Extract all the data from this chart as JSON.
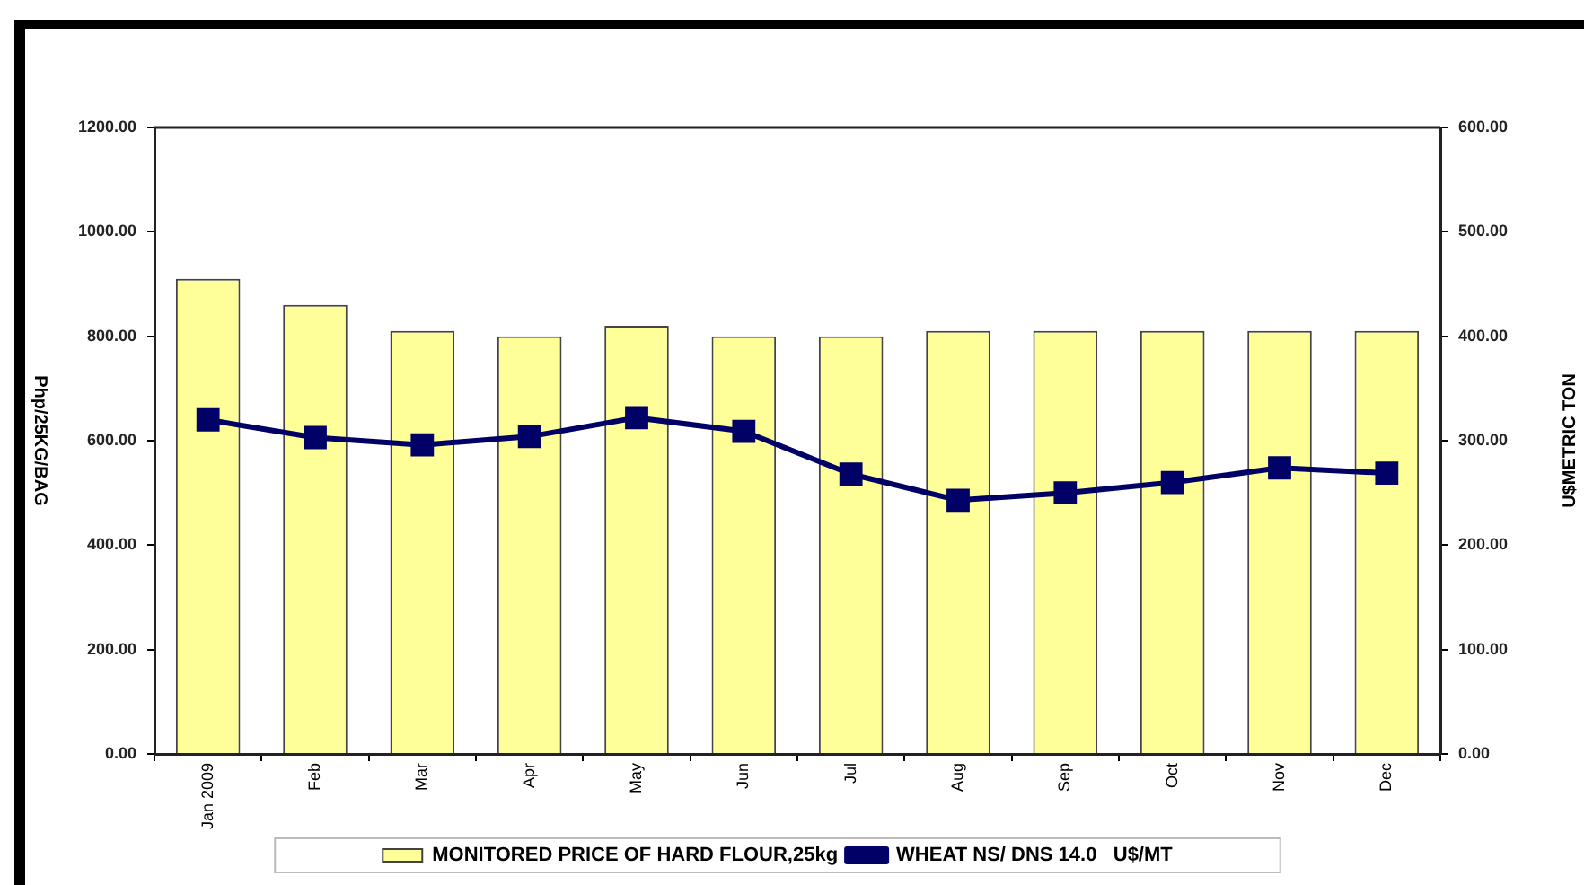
{
  "chart_data": {
    "type": "bar",
    "categories": [
      "Jan 2009",
      "Feb",
      "Mar",
      "Apr",
      "May",
      "Jun",
      "Jul",
      "Aug",
      "Sep",
      "Oct",
      "Nov",
      "Dec"
    ],
    "ylabel": "Php/25KG/BAG",
    "y2label": "U$METRIC TON",
    "ylim": [
      0,
      1200
    ],
    "yticks": [
      {
        "value": 0,
        "label": "0.00"
      },
      {
        "value": 200,
        "label": "200.00"
      },
      {
        "value": 400,
        "label": "400.00"
      },
      {
        "value": 600,
        "label": "600.00"
      },
      {
        "value": 800,
        "label": "800.00"
      },
      {
        "value": 1000,
        "label": "1000.00"
      },
      {
        "value": 1200,
        "label": "1200.00"
      }
    ],
    "y2lim": [
      0,
      600
    ],
    "y2ticks": [
      {
        "value": 0,
        "label": "0.00"
      },
      {
        "value": 100,
        "label": "100.00"
      },
      {
        "value": 200,
        "label": "200.00"
      },
      {
        "value": 300,
        "label": "300.00"
      },
      {
        "value": 400,
        "label": "400.00"
      },
      {
        "value": 500,
        "label": "500.00"
      },
      {
        "value": 600,
        "label": "600.00"
      }
    ],
    "series": [
      {
        "name": "MONITORED PRICE OF HARD FLOUR,25kg",
        "color": "#ffff99",
        "values": [
          910,
          860,
          810,
          800,
          820,
          800,
          800,
          810,
          810,
          810,
          810,
          810
        ]
      },
      {
        "name": "WHEAT NS/ DNS 14.0   U$/MT",
        "type": "line",
        "axis": "y2",
        "color": "#000066",
        "values": [
          320,
          303,
          296,
          304,
          322,
          309,
          268,
          243,
          250,
          260,
          274,
          269
        ]
      }
    ],
    "marker": "square",
    "legend": "bottom"
  }
}
